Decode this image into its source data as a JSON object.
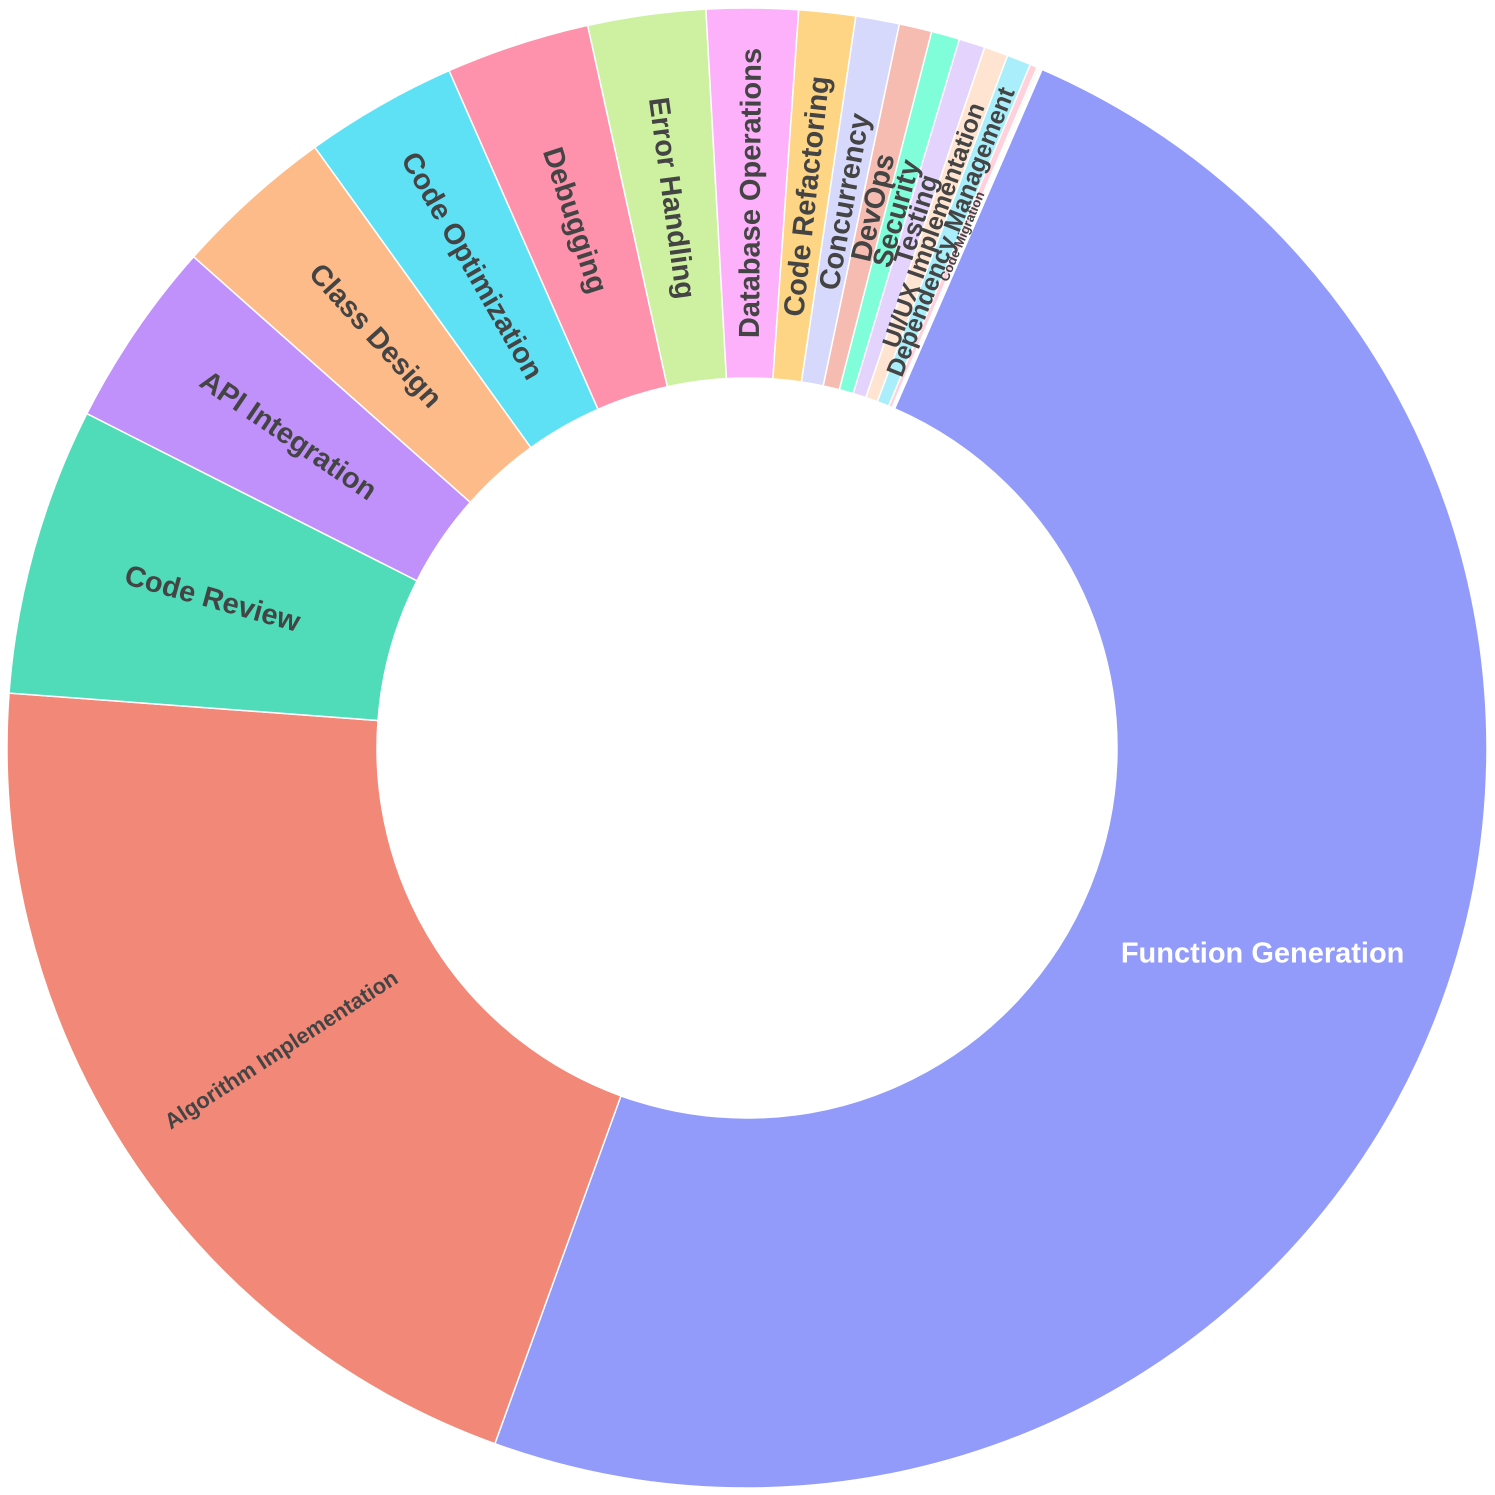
{
  "chart_data": {
    "type": "pie",
    "hole": 0.5,
    "direction": "clockwise",
    "sort": "descending",
    "slices": [
      {
        "label": "Function Generation",
        "value": 51.5,
        "color": "#929bfa",
        "label_color": "#ffffff"
      },
      {
        "label": "Algorithm Implementation",
        "value": 21.7,
        "color": "#f28877",
        "label_color": "#444444"
      },
      {
        "label": "Code Review",
        "value": 6.6,
        "color": "#50dbb9",
        "label_color": "#444444"
      },
      {
        "label": "API Integration",
        "value": 4.3,
        "color": "#c090fb",
        "label_color": "#444444"
      },
      {
        "label": "Class Design",
        "value": 3.7,
        "color": "#fdbb8a",
        "label_color": "#444444"
      },
      {
        "label": "Code Optimization",
        "value": 3.5,
        "color": "#5ee1f5",
        "label_color": "#444444"
      },
      {
        "label": "Debugging",
        "value": 3.3,
        "color": "#fe92ad",
        "label_color": "#444444"
      },
      {
        "label": "Error Handling",
        "value": 2.7,
        "color": "#cdf1a0",
        "label_color": "#444444"
      },
      {
        "label": "Database Operations",
        "value": 2.1,
        "color": "#fdb1fb",
        "label_color": "#444444"
      },
      {
        "label": "Code Refactoring",
        "value": 1.3,
        "color": "#fed585",
        "label_color": "#444444"
      },
      {
        "label": "Concurrency",
        "value": 1.0,
        "color": "#d6d9fb",
        "label_color": "#444444"
      },
      {
        "label": "DevOps",
        "value": 0.75,
        "color": "#f6bcb1",
        "label_color": "#444444"
      },
      {
        "label": "Security",
        "value": 0.65,
        "color": "#7ffed9",
        "label_color": "#444444"
      },
      {
        "label": "Testing",
        "value": 0.6,
        "color": "#e4d3fc",
        "label_color": "#444444"
      },
      {
        "label": "UI/UX Implementation",
        "value": 0.55,
        "color": "#ffe4d1",
        "label_color": "#444444"
      },
      {
        "label": "Dependency Management",
        "value": 0.55,
        "color": "#a9eefa",
        "label_color": "#444444"
      },
      {
        "label": "Code Migration",
        "value": 0.17,
        "color": "#ffd1dc",
        "label_color": "#444444"
      },
      {
        "label": "",
        "value": 0.05,
        "color": "#e8f7d6",
        "label_color": "#444444"
      },
      {
        "label": "",
        "value": 0.04,
        "color": "#fde0fc",
        "label_color": "#444444"
      },
      {
        "label": "",
        "value": 0.03,
        "color": "#fff0d0",
        "label_color": "#444444"
      }
    ]
  }
}
